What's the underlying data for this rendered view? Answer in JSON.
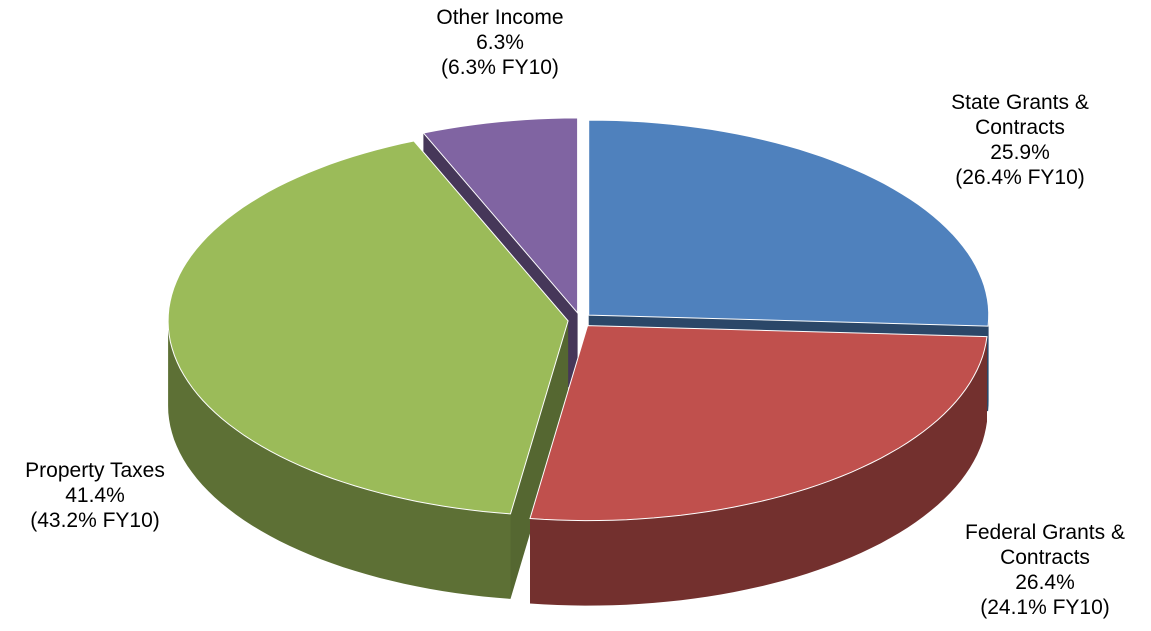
{
  "chart_data": {
    "type": "pie3d",
    "categories": [
      "State Grants & Contracts",
      "Federal Grants & Contracts",
      "Property Taxes",
      "Other Income"
    ],
    "values": [
      25.9,
      26.4,
      41.4,
      6.3
    ],
    "value_labels": [
      "25.9%",
      "26.4%",
      "41.4%",
      "6.3%"
    ],
    "fy10_values": [
      26.4,
      24.1,
      43.2,
      6.3
    ],
    "fy10_labels": [
      "(26.4% FY10)",
      "(24.1% FY10)",
      "(43.2% FY10)",
      "(6.3% FY10)"
    ],
    "colors": [
      "#4f81bd",
      "#c0504d",
      "#9bbb59",
      "#8064a2"
    ]
  }
}
